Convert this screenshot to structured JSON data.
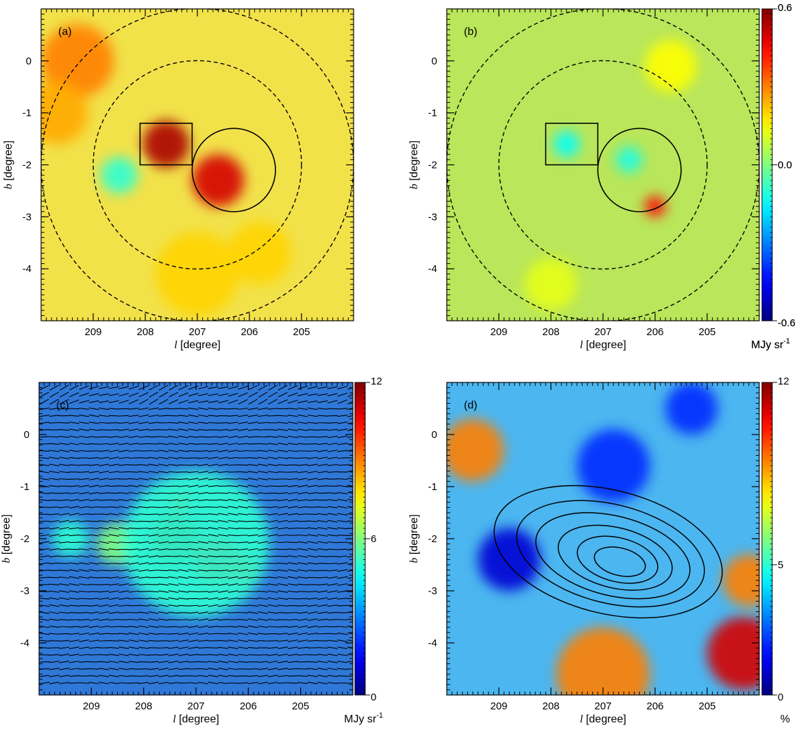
{
  "chart_data": [
    {
      "type": "heatmap",
      "panel": "(a)",
      "xlabel_var": "l",
      "xlabel_unit": " [degree]",
      "ylabel_var": "b",
      "ylabel_unit": " [degree]",
      "xlim": [
        210,
        204
      ],
      "ylim": [
        -5,
        1
      ],
      "xticks": [
        209,
        208,
        207,
        206,
        205
      ],
      "yticks": [
        0,
        -1,
        -2,
        -3,
        -4
      ],
      "colorbar": {
        "min": -0.6,
        "max": 0.6,
        "ticks": [
          "0.6",
          "0.0",
          "-0.6"
        ],
        "label": "MJy sr",
        "label_sup": "-1"
      },
      "background": "#f2e24a",
      "overlays": {
        "dashed_circles": [
          {
            "l": 207,
            "b": -2,
            "r": 2
          },
          {
            "l": 207,
            "b": -2,
            "r": 3
          }
        ],
        "solid_circle": {
          "l": 206.3,
          "b": -2.1,
          "r": 0.8
        },
        "box": {
          "l1": 208.1,
          "l2": 207.1,
          "b1": -1.2,
          "b2": -2.0
        }
      },
      "features": [
        {
          "l": 207.6,
          "b": -1.6,
          "r": 0.45,
          "level": 0.55
        },
        {
          "l": 206.6,
          "b": -2.3,
          "r": 0.5,
          "level": 0.5
        },
        {
          "l": 209.3,
          "b": 0.0,
          "r": 0.7,
          "level": 0.3
        },
        {
          "l": 209.7,
          "b": -1.0,
          "r": 0.6,
          "level": 0.25
        },
        {
          "l": 207.0,
          "b": -4.1,
          "r": 0.8,
          "level": 0.2
        },
        {
          "l": 205.8,
          "b": -3.7,
          "r": 0.6,
          "level": 0.2
        },
        {
          "l": 208.5,
          "b": -2.2,
          "r": 0.35,
          "level": -0.1
        }
      ]
    },
    {
      "type": "heatmap",
      "panel": "(b)",
      "xlabel_var": "l",
      "xlabel_unit": " [degree]",
      "ylabel_var": "b",
      "ylabel_unit": " [degree]",
      "xlim": [
        210,
        204
      ],
      "ylim": [
        -5,
        1
      ],
      "xticks": [
        209,
        208,
        207,
        206,
        205
      ],
      "yticks": [
        0,
        -1,
        -2,
        -3,
        -4
      ],
      "colorbar": {
        "min": -0.6,
        "max": 0.6,
        "ticks": [
          "0.6",
          "0.0",
          "-0.6"
        ],
        "label": "MJy sr",
        "label_sup": "-1"
      },
      "background": "#b9e65a",
      "overlays": {
        "dashed_circles": [
          {
            "l": 207,
            "b": -2,
            "r": 2
          },
          {
            "l": 207,
            "b": -2,
            "r": 3
          }
        ],
        "solid_circle": {
          "l": 206.3,
          "b": -2.1,
          "r": 0.8
        },
        "box": {
          "l1": 208.1,
          "l2": 207.1,
          "b1": -1.2,
          "b2": -2.0
        }
      },
      "features": [
        {
          "l": 206.0,
          "b": -2.8,
          "r": 0.2,
          "level": 0.45
        },
        {
          "l": 207.7,
          "b": -1.6,
          "r": 0.25,
          "level": -0.15
        },
        {
          "l": 206.5,
          "b": -1.9,
          "r": 0.25,
          "level": -0.12
        },
        {
          "l": 205.7,
          "b": -0.1,
          "r": 0.5,
          "level": 0.15
        },
        {
          "l": 208.0,
          "b": -4.3,
          "r": 0.5,
          "level": 0.12
        }
      ]
    },
    {
      "type": "heatmap",
      "panel": "(c)",
      "xlabel_var": "l",
      "xlabel_unit": " [degree]",
      "ylabel_var": "b",
      "ylabel_unit": " [degree]",
      "xlim": [
        210,
        204
      ],
      "ylim": [
        -5,
        1
      ],
      "xticks": [
        209,
        208,
        207,
        206,
        205
      ],
      "yticks": [
        0,
        -1,
        -2,
        -3,
        -4
      ],
      "colorbar": {
        "min": 0,
        "max": 12,
        "ticks": [
          "12",
          "6",
          "0"
        ],
        "label": "MJy sr",
        "label_sup": "-1"
      },
      "background": "#2f78d8",
      "vectors": "polarization segments, mostly horizontal",
      "features": [
        {
          "l": 207.4,
          "b": -2.0,
          "r": 0.45,
          "level": 12
        },
        {
          "l": 206.6,
          "b": -2.4,
          "r": 0.45,
          "level": 11
        },
        {
          "l": 206.1,
          "b": -2.6,
          "r": 0.3,
          "level": 10
        },
        {
          "l": 207.3,
          "b": -1.3,
          "r": 0.2,
          "level": 10
        },
        {
          "l": 208.5,
          "b": -2.1,
          "r": 0.4,
          "level": 6
        },
        {
          "l": 207.0,
          "b": -2.1,
          "r": 1.4,
          "level": 5
        },
        {
          "l": 209.4,
          "b": -2.0,
          "r": 0.35,
          "level": 5
        }
      ]
    },
    {
      "type": "heatmap",
      "panel": "(d)",
      "xlabel_var": "l",
      "xlabel_unit": " [degree]",
      "ylabel_var": "b",
      "ylabel_unit": " [degree]",
      "xlim": [
        210,
        204
      ],
      "ylim": [
        -5,
        1
      ],
      "xticks": [
        209,
        208,
        207,
        206,
        205
      ],
      "yticks": [
        0,
        -1,
        -2,
        -3,
        -4
      ],
      "colorbar": {
        "min": 0,
        "max": 12,
        "ticks": [
          "12",
          "5",
          "0"
        ],
        "label": "%",
        "label_sup": ""
      },
      "background": "#4bb6f0",
      "contours": "intensity contours around l=206.8, b=-2.2",
      "features": [
        {
          "l": 209.5,
          "b": -0.3,
          "r": 0.6,
          "level": 9
        },
        {
          "l": 204.3,
          "b": -4.2,
          "r": 0.7,
          "level": 11
        },
        {
          "l": 207.0,
          "b": -4.6,
          "r": 0.9,
          "level": 9
        },
        {
          "l": 204.2,
          "b": -2.8,
          "r": 0.5,
          "level": 9
        },
        {
          "l": 208.8,
          "b": -2.4,
          "r": 0.6,
          "level": 1
        },
        {
          "l": 206.8,
          "b": -0.6,
          "r": 0.7,
          "level": 2
        },
        {
          "l": 205.3,
          "b": 0.5,
          "r": 0.5,
          "level": 2
        }
      ]
    }
  ]
}
